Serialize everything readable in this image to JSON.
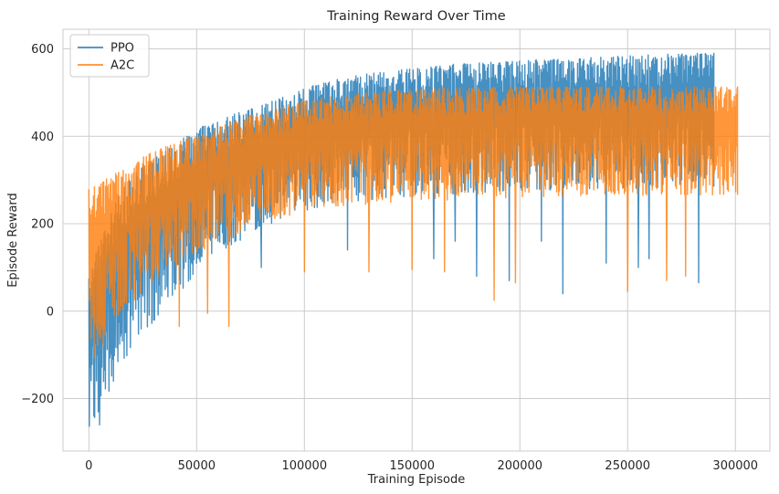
{
  "chart_data": {
    "type": "line",
    "title": "Training Reward Over Time",
    "xlabel": "Training Episode",
    "ylabel": "Episode Reward",
    "xlim": [
      -12000,
      316000
    ],
    "ylim": [
      -320,
      645
    ],
    "xticks": [
      0,
      50000,
      100000,
      150000,
      200000,
      250000,
      300000
    ],
    "xtick_labels": [
      "0",
      "50000",
      "100000",
      "150000",
      "200000",
      "250000",
      "300000"
    ],
    "yticks": [
      -200,
      0,
      200,
      400,
      600
    ],
    "ytick_labels": [
      "−200",
      "0",
      "200",
      "400",
      "600"
    ],
    "grid": true,
    "legend_position": "top-left",
    "series": [
      {
        "name": "PPO",
        "color": "#1f77b4",
        "episodes": 290000,
        "x": [
          0,
          2000,
          5000,
          10000,
          15000,
          20000,
          30000,
          40000,
          50000,
          60000,
          70000,
          80000,
          90000,
          100000,
          110000,
          120000,
          130000,
          140000,
          150000,
          160000,
          170000,
          180000,
          190000,
          200000,
          220000,
          240000,
          260000,
          280000,
          290000
        ],
        "upper": [
          80,
          110,
          160,
          230,
          275,
          310,
          350,
          385,
          415,
          440,
          455,
          470,
          490,
          510,
          525,
          535,
          545,
          550,
          555,
          560,
          565,
          568,
          570,
          572,
          578,
          582,
          586,
          590,
          590
        ],
        "lower": [
          -280,
          -260,
          -230,
          -180,
          -130,
          -90,
          -30,
          30,
          90,
          130,
          160,
          190,
          210,
          230,
          240,
          250,
          255,
          260,
          262,
          265,
          268,
          270,
          272,
          274,
          278,
          280,
          282,
          285,
          285
        ],
        "spikes": [
          [
            5000,
            -260
          ],
          [
            30000,
            -20
          ],
          [
            80000,
            100
          ],
          [
            120000,
            140
          ],
          [
            160000,
            120
          ],
          [
            170000,
            160
          ],
          [
            180000,
            80
          ],
          [
            195000,
            70
          ],
          [
            210000,
            160
          ],
          [
            220000,
            40
          ],
          [
            240000,
            110
          ],
          [
            255000,
            100
          ],
          [
            260000,
            120
          ],
          [
            283000,
            65
          ]
        ]
      },
      {
        "name": "A2C",
        "color": "#ff7f0e",
        "episodes": 301000,
        "x": [
          0,
          2000,
          5000,
          10000,
          15000,
          20000,
          30000,
          40000,
          50000,
          60000,
          70000,
          80000,
          90000,
          100000,
          110000,
          120000,
          130000,
          140000,
          150000,
          160000,
          170000,
          180000,
          190000,
          200000,
          220000,
          240000,
          260000,
          280000,
          301000
        ],
        "upper": [
          280,
          285,
          290,
          310,
          325,
          340,
          365,
          385,
          400,
          420,
          440,
          455,
          470,
          480,
          490,
          495,
          500,
          505,
          507,
          509,
          510,
          511,
          512,
          512,
          513,
          513,
          513,
          513,
          513
        ],
        "lower": [
          -150,
          -130,
          -100,
          -40,
          0,
          20,
          60,
          100,
          130,
          160,
          180,
          200,
          215,
          225,
          235,
          240,
          245,
          248,
          250,
          252,
          254,
          256,
          258,
          260,
          262,
          264,
          265,
          266,
          266
        ],
        "spikes": [
          [
            42000,
            -35
          ],
          [
            55000,
            -5
          ],
          [
            65000,
            -35
          ],
          [
            100000,
            90
          ],
          [
            130000,
            90
          ],
          [
            150000,
            95
          ],
          [
            165000,
            90
          ],
          [
            188000,
            25
          ],
          [
            198000,
            65
          ],
          [
            250000,
            45
          ],
          [
            268000,
            70
          ],
          [
            277000,
            80
          ]
        ]
      }
    ]
  }
}
